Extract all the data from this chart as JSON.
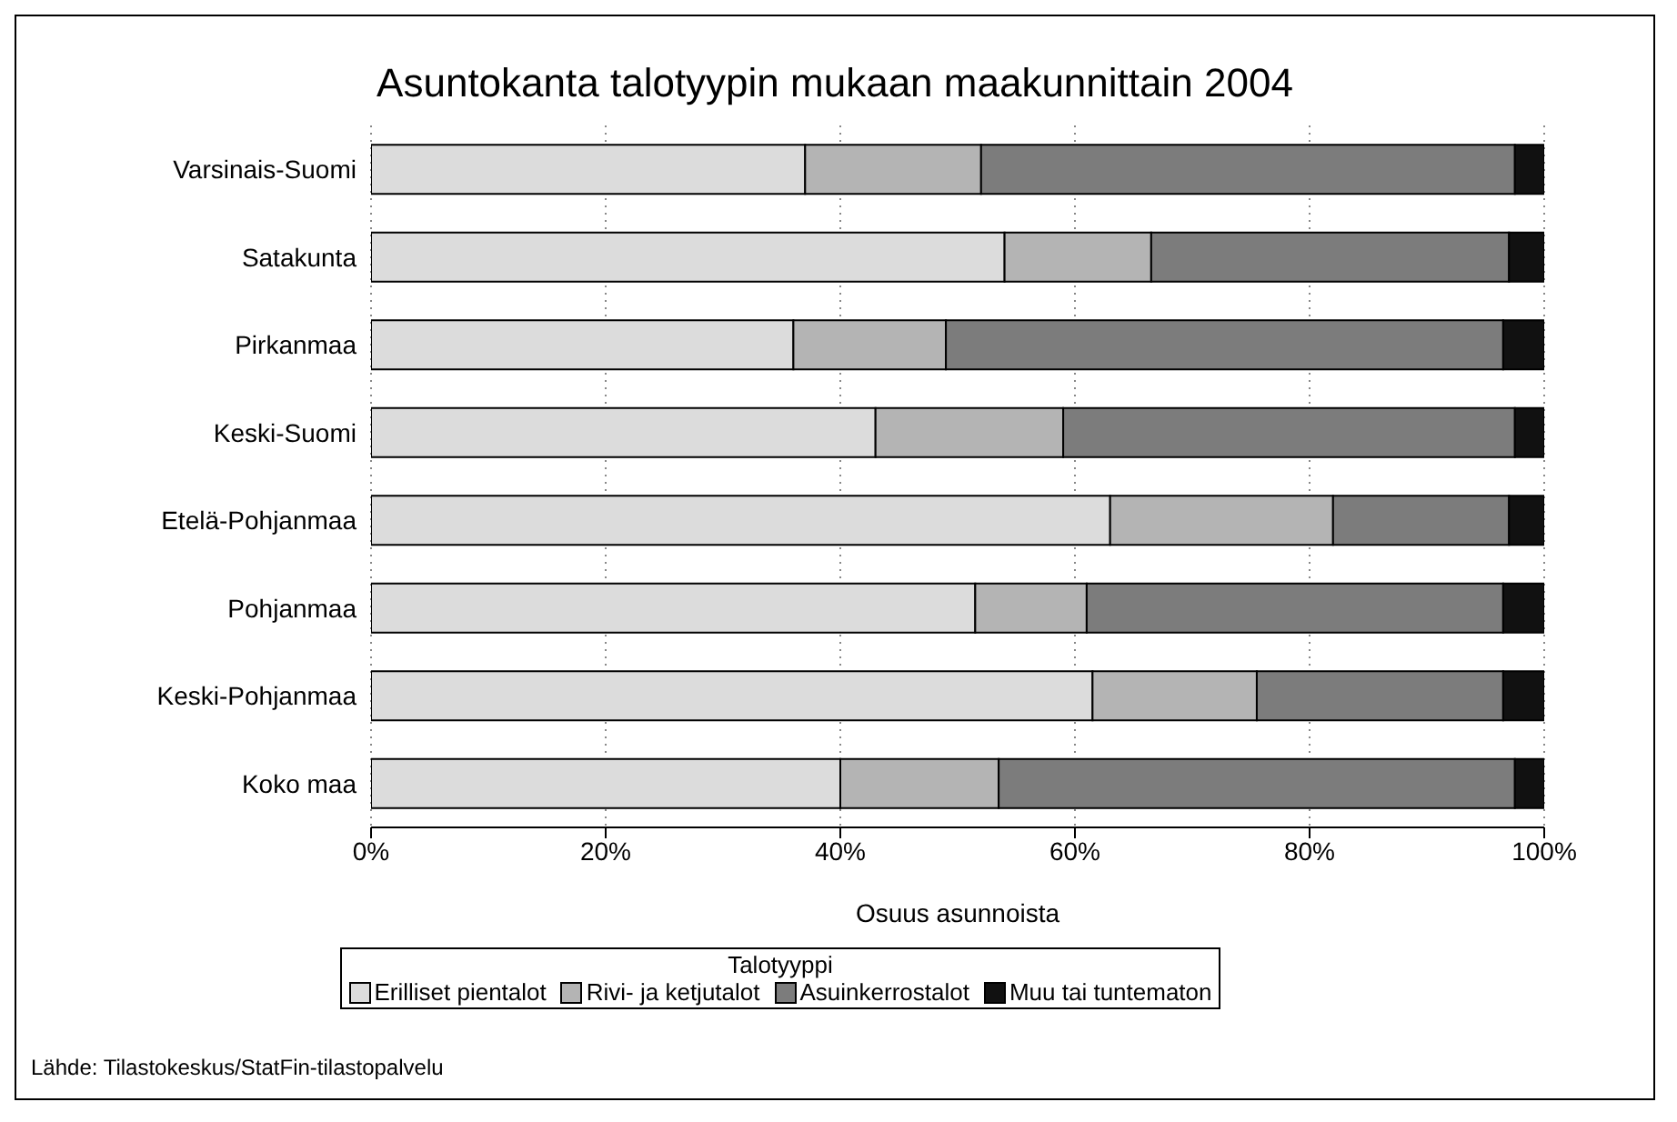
{
  "chart_data": {
    "type": "bar",
    "orientation": "horizontal",
    "stacked": true,
    "title": "Asuntokanta talotyypin mukaan maakunnittain 2004",
    "xlabel": "Osuus asunnoista",
    "legend_title": "Talotyyppi",
    "categories": [
      "Varsinais-Suomi",
      "Satakunta",
      "Pirkanmaa",
      "Keski-Suomi",
      "Etelä-Pohjanmaa",
      "Pohjanmaa",
      "Keski-Pohjanmaa",
      "Koko maa"
    ],
    "series": [
      {
        "name": "Erilliset pientalot",
        "color": "#dcdcdc",
        "values": [
          37,
          54,
          36,
          43,
          63,
          51.5,
          61.5,
          40
        ]
      },
      {
        "name": "Rivi- ja ketjutalot",
        "color": "#b4b4b4",
        "values": [
          15,
          12.5,
          13,
          16,
          19,
          9.5,
          14,
          13.5
        ]
      },
      {
        "name": "Asuinkerrostalot",
        "color": "#7c7c7c",
        "values": [
          45.5,
          30.5,
          47.5,
          38.5,
          15,
          35.5,
          21,
          44
        ]
      },
      {
        "name": "Muu tai tuntematon",
        "color": "#111111",
        "values": [
          2.5,
          3,
          3.5,
          2.5,
          3,
          3.5,
          3.5,
          2.5
        ]
      }
    ],
    "xlim": [
      0,
      100
    ],
    "xticks": [
      {
        "value": 0,
        "label": "0%"
      },
      {
        "value": 20,
        "label": "20%"
      },
      {
        "value": 40,
        "label": "40%"
      },
      {
        "value": 60,
        "label": "60%"
      },
      {
        "value": 80,
        "label": "80%"
      },
      {
        "value": 100,
        "label": "100%"
      }
    ],
    "grid": "x",
    "legend": "bottom",
    "annotations": [
      "Lähde: Tilastokeskus/StatFin-tilastopalvelu"
    ]
  }
}
